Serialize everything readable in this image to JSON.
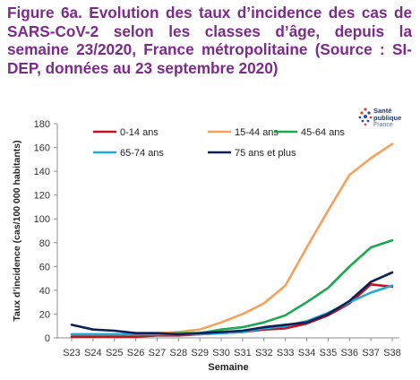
{
  "title": {
    "line1": "Figure 6a. Evolution des taux d’incidence des cas",
    "line2": "de SARS-CoV-2 selon les classes d’âge, depuis la",
    "line3": "semaine 23/2020, France métropolitaine",
    "line4": "(Source : SI-DEP, données au 23 septembre 2020)"
  },
  "logo": {
    "line1": "Santé",
    "line2": "publique",
    "line3": "France"
  },
  "colors": {
    "title": "#7c2a8c",
    "0-14": "#c0141f",
    "15-44": "#f6a15b",
    "45-64": "#1aa94f",
    "65-74": "#22a9dc",
    "75plus": "#0e1f55"
  },
  "chart_data": {
    "type": "line",
    "xlabel": "Semaine",
    "ylabel": "Taux d’incidence (cas/100 000 habitants)",
    "ylim": [
      0,
      180
    ],
    "yticks": [
      0,
      20,
      40,
      60,
      80,
      100,
      120,
      140,
      160,
      180
    ],
    "grid": false,
    "legend": "top",
    "categories": [
      "S23",
      "S24",
      "S25",
      "S26",
      "S27",
      "S28",
      "S29",
      "S30",
      "S31",
      "S32",
      "S33",
      "S34",
      "S35",
      "S36",
      "S37",
      "S38"
    ],
    "series": [
      {
        "name": "0-14 ans",
        "color": "#c0141f",
        "values": [
          1,
          1,
          1,
          1,
          2,
          2,
          3,
          4,
          5,
          7,
          8,
          12,
          19,
          29,
          45,
          43
        ]
      },
      {
        "name": "15-44 ans",
        "color": "#f6a15b",
        "values": [
          3,
          3,
          3,
          3,
          4,
          5,
          7,
          13,
          20,
          29,
          44,
          76,
          107,
          137,
          151,
          163
        ]
      },
      {
        "name": "45-64 ans",
        "color": "#1aa94f",
        "values": [
          3,
          3,
          3,
          3,
          3,
          4,
          4,
          7,
          9,
          13,
          19,
          30,
          42,
          60,
          76,
          82
        ]
      },
      {
        "name": "65-74 ans",
        "color": "#22a9dc",
        "values": [
          3,
          3,
          3,
          3,
          3,
          3,
          3,
          4,
          5,
          8,
          10,
          14,
          21,
          30,
          38,
          44
        ]
      },
      {
        "name": "75 ans et plus",
        "color": "#0e1f55",
        "values": [
          11,
          7,
          6,
          4,
          4,
          3,
          4,
          5,
          6,
          9,
          11,
          13,
          20,
          31,
          47,
          55
        ]
      }
    ]
  }
}
